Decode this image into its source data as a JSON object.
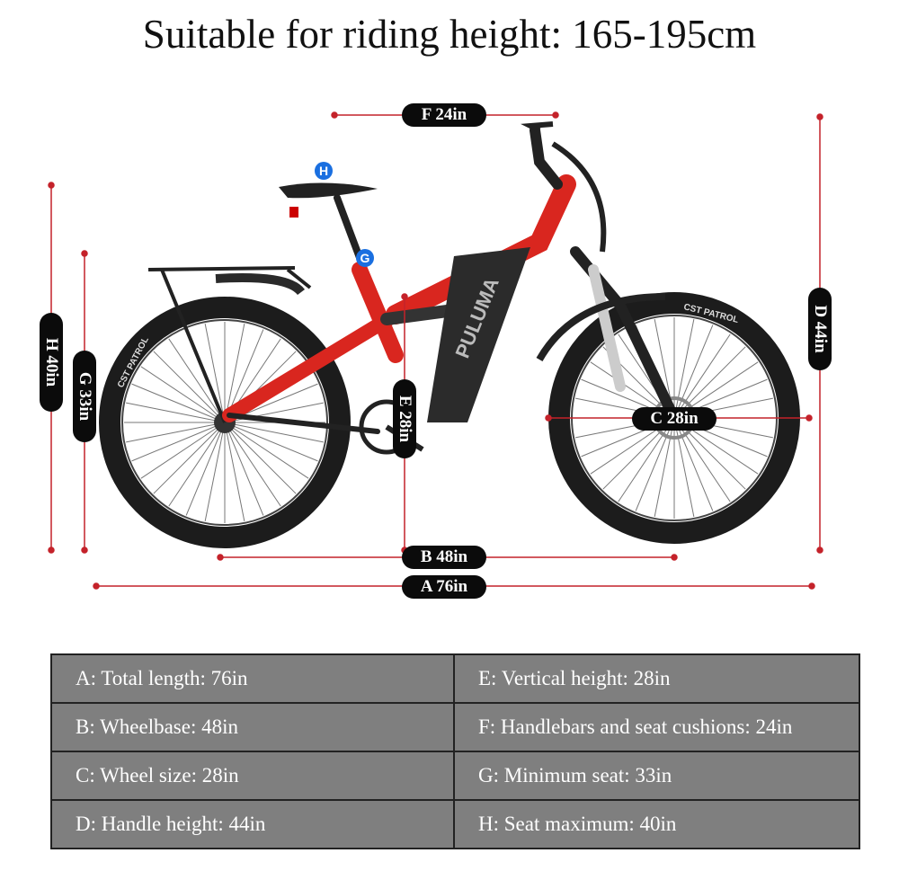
{
  "title": "Suitable for riding height: 165-195cm",
  "dimension_labels": {
    "A": "A 76in",
    "B": "B 48in",
    "C": "C 28in",
    "D": "D 44in",
    "E": "E 28in",
    "F": "F 24in",
    "G": "G 33in",
    "H": "H 40in"
  },
  "markers": {
    "H": "H",
    "G": "G"
  },
  "bike_branding": {
    "frame": "PULUMA",
    "tire": "CST PATROL"
  },
  "colors": {
    "dimension_line": "#c4222a",
    "frame": "#d9261f",
    "table_bg": "#7f7f7f",
    "marker": "#1a6fe0"
  },
  "spec_table": [
    [
      "A: Total length: 76in",
      "E: Vertical height: 28in"
    ],
    [
      "B: Wheelbase: 48in",
      "F: Handlebars and seat cushions: 24in"
    ],
    [
      "C: Wheel size: 28in",
      "G: Minimum seat: 33in"
    ],
    [
      "D: Handle height: 44in",
      "H: Seat maximum: 40in"
    ]
  ]
}
